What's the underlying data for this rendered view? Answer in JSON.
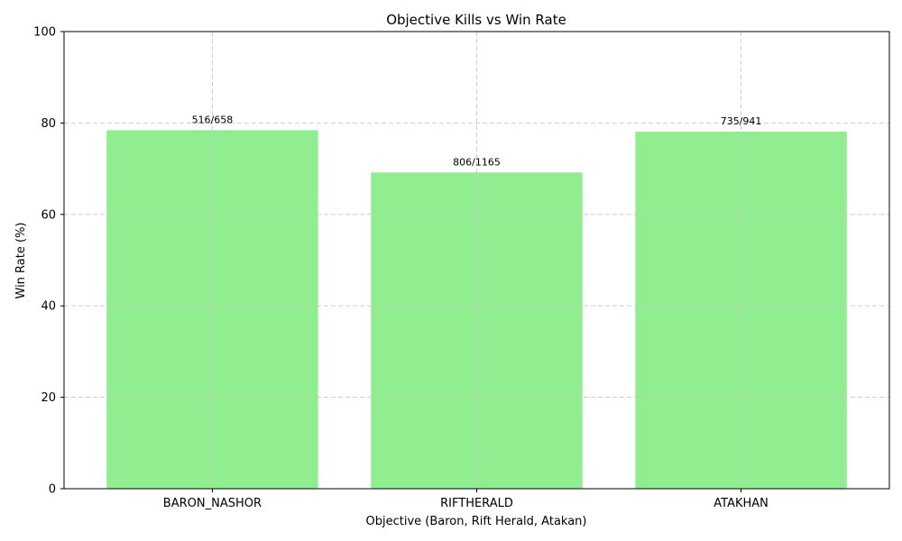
{
  "chart_data": {
    "type": "bar",
    "title": "Objective Kills vs Win Rate",
    "xlabel": "Objective (Baron, Rift Herald, Atakan)",
    "ylabel": "Win Rate (%)",
    "categories": [
      "BARON_NASHOR",
      "RIFTHERALD",
      "ATAKHAN"
    ],
    "values": [
      78.42,
      69.18,
      78.11
    ],
    "bar_labels": [
      "516/658",
      "806/1165",
      "735/941"
    ],
    "ylim": [
      0,
      100
    ],
    "yticks": [
      0,
      20,
      40,
      60,
      80,
      100
    ],
    "grid": true,
    "bar_color": "#90ee90"
  }
}
